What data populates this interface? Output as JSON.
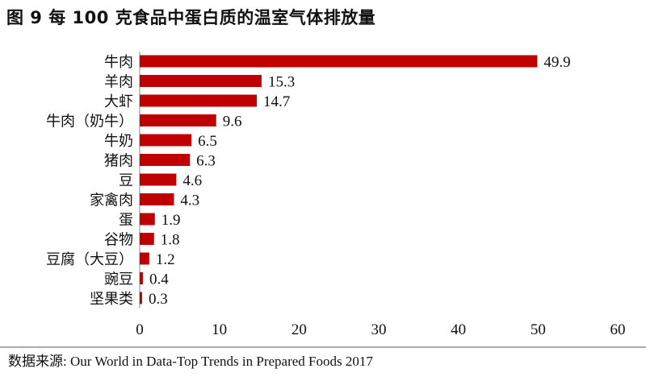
{
  "chart_data": {
    "type": "bar",
    "orientation": "horizontal",
    "title": "图 9  每 100 克食品中蛋白质的温室气体排放量",
    "categories": [
      "牛肉",
      "羊肉",
      "大虾",
      "牛肉（奶牛）",
      "牛奶",
      "猪肉",
      "豆",
      "家禽肉",
      "蛋",
      "谷物",
      "豆腐（大豆）",
      "豌豆",
      "坚果类"
    ],
    "values": [
      49.9,
      15.3,
      14.7,
      9.6,
      6.5,
      6.3,
      4.6,
      4.3,
      1.9,
      1.8,
      1.2,
      0.4,
      0.3
    ],
    "data_labels": [
      "49.9",
      "15.3",
      "14.7",
      "9.6",
      "6.5",
      "6.3",
      "4.6",
      "4.3",
      "1.9",
      "1.8",
      "1.2",
      "0.4",
      "0.3"
    ],
    "xlim": [
      0,
      60
    ],
    "xticks": [
      "0",
      "10",
      "20",
      "30",
      "40",
      "50",
      "60"
    ],
    "xlabel": "",
    "ylabel": "",
    "grid": false,
    "legend": "none",
    "bar_color": "#C00000"
  },
  "source": "数据来源: Our World in Data-Top Trends in Prepared Foods 2017"
}
